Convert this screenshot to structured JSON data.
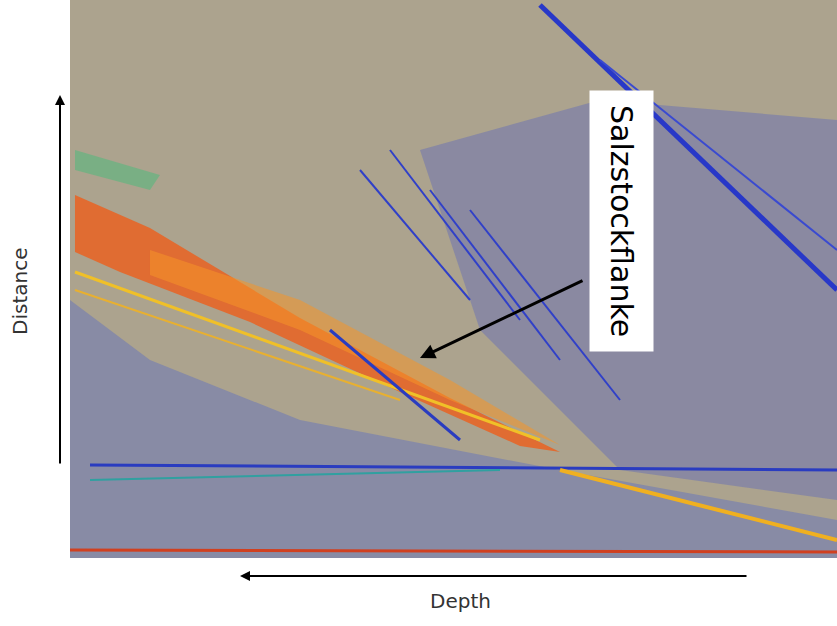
{
  "chart_data": {
    "type": "image",
    "x_label": "Depth",
    "y_label": "Distance",
    "annotations": [
      {
        "text": "Salzstockflanke"
      }
    ],
    "tick_labels": false
  }
}
